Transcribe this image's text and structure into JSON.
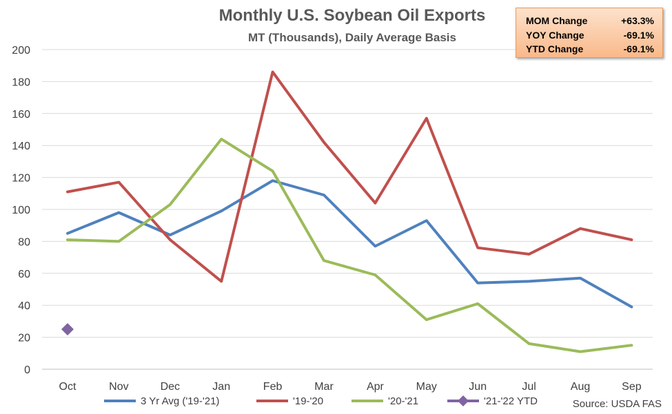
{
  "chart_data": {
    "type": "line",
    "title": "Monthly U.S. Soybean Oil Exports",
    "subtitle": "MT (Thousands), Daily Average Basis",
    "categories": [
      "Oct",
      "Nov",
      "Dec",
      "Jan",
      "Feb",
      "Mar",
      "Apr",
      "May",
      "Jun",
      "Jul",
      "Aug",
      "Sep"
    ],
    "ylim": [
      0,
      200
    ],
    "yticks": [
      0,
      20,
      40,
      60,
      80,
      100,
      120,
      140,
      160,
      180,
      200
    ],
    "grid": true,
    "legend_position": "bottom",
    "series": [
      {
        "name": "3 Yr Avg ('19-'21)",
        "color": "#4f81bd",
        "marker": "none",
        "values": [
          85,
          98,
          84,
          99,
          118,
          109,
          77,
          93,
          54,
          55,
          57,
          39
        ]
      },
      {
        "name": "'19-'20",
        "color": "#c0504d",
        "marker": "none",
        "values": [
          111,
          117,
          81,
          55,
          186,
          142,
          104,
          157,
          76,
          72,
          88,
          81
        ]
      },
      {
        "name": "'20-'21",
        "color": "#9bbb59",
        "marker": "none",
        "values": [
          81,
          80,
          103,
          144,
          124,
          68,
          59,
          31,
          41,
          16,
          11,
          15
        ]
      },
      {
        "name": "'21-'22 YTD",
        "color": "#8064a2",
        "marker": "diamond",
        "values": [
          25,
          null,
          null,
          null,
          null,
          null,
          null,
          null,
          null,
          null,
          null,
          null
        ]
      }
    ],
    "annotations": {
      "source": "Source: USDA FAS",
      "stats": [
        {
          "label": "MOM Change",
          "value": "+63.3%"
        },
        {
          "label": "YOY Change",
          "value": "-69.1%"
        },
        {
          "label": "YTD Change",
          "value": "-69.1%"
        }
      ]
    }
  }
}
